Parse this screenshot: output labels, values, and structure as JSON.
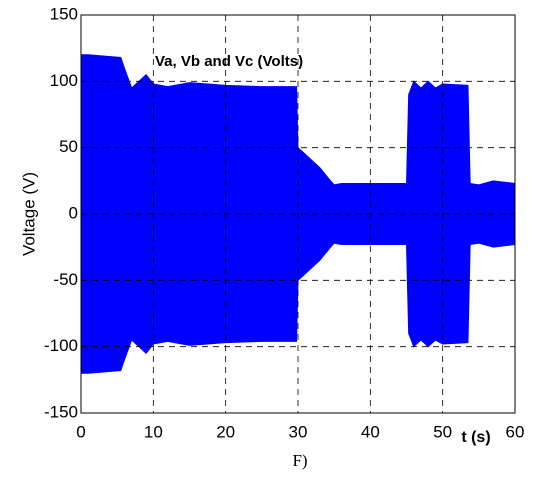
{
  "chart_data": {
    "type": "band",
    "y_label": "Voltage (V)",
    "x_label": "t (s)",
    "caption": "F)",
    "annotation": "Va, Vb and Vc (Volts)",
    "x": [
      0,
      1,
      5.5,
      6,
      7,
      8,
      9,
      10,
      12,
      15,
      20,
      25,
      29.8,
      30,
      31,
      33,
      34.5,
      35,
      36,
      45,
      45.3,
      46,
      47,
      48,
      49,
      50,
      53.5,
      53.8,
      55,
      57,
      60
    ],
    "series": [
      {
        "name": "Va, Vb and Vc (Volts)",
        "color": "#0000ff",
        "values": [
          120,
          120,
          118,
          110,
          95,
          100,
          105,
          98,
          96,
          99,
          97,
          96,
          96,
          50,
          45,
          35,
          25,
          22,
          23,
          23,
          90,
          100,
          95,
          100,
          95,
          98,
          97,
          23,
          22,
          25,
          23
        ],
        "lower": [
          -120,
          -120,
          -118,
          -110,
          -95,
          -100,
          -105,
          -98,
          -96,
          -99,
          -97,
          -96,
          -96,
          -50,
          -45,
          -35,
          -25,
          -22,
          -23,
          -23,
          -90,
          -100,
          -95,
          -100,
          -95,
          -98,
          -97,
          -23,
          -22,
          -25,
          -23
        ]
      }
    ],
    "xlim": [
      0,
      60
    ],
    "xticks": [
      0,
      10,
      20,
      30,
      40,
      50,
      60
    ],
    "ylim": [
      -150,
      150
    ],
    "yticks": [
      -150,
      -100,
      -50,
      0,
      50,
      100,
      150
    ],
    "grid": true
  }
}
